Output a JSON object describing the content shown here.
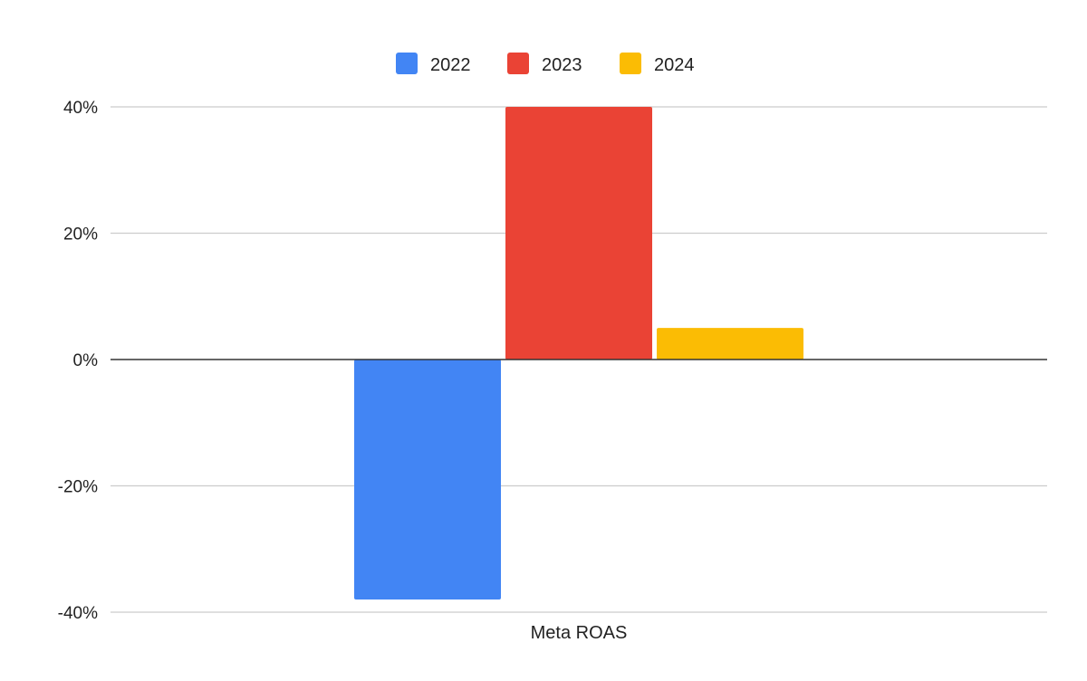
{
  "chart_data": {
    "type": "bar",
    "categories": [
      "Meta ROAS"
    ],
    "series": [
      {
        "name": "2022",
        "values": [
          -38
        ],
        "color": "#4285F4"
      },
      {
        "name": "2023",
        "values": [
          40
        ],
        "color": "#EA4335"
      },
      {
        "name": "2024",
        "values": [
          5
        ],
        "color": "#FBBC04"
      }
    ],
    "title": "",
    "xlabel": "",
    "ylabel": "",
    "ylim": [
      -40,
      40
    ],
    "yticks": [
      {
        "value": 40,
        "label": "40%"
      },
      {
        "value": 20,
        "label": "20%"
      },
      {
        "value": 0,
        "label": "0%"
      },
      {
        "value": -20,
        "label": "-20%"
      },
      {
        "value": -40,
        "label": "-40%"
      }
    ],
    "grid": true,
    "legend_position": "top"
  }
}
